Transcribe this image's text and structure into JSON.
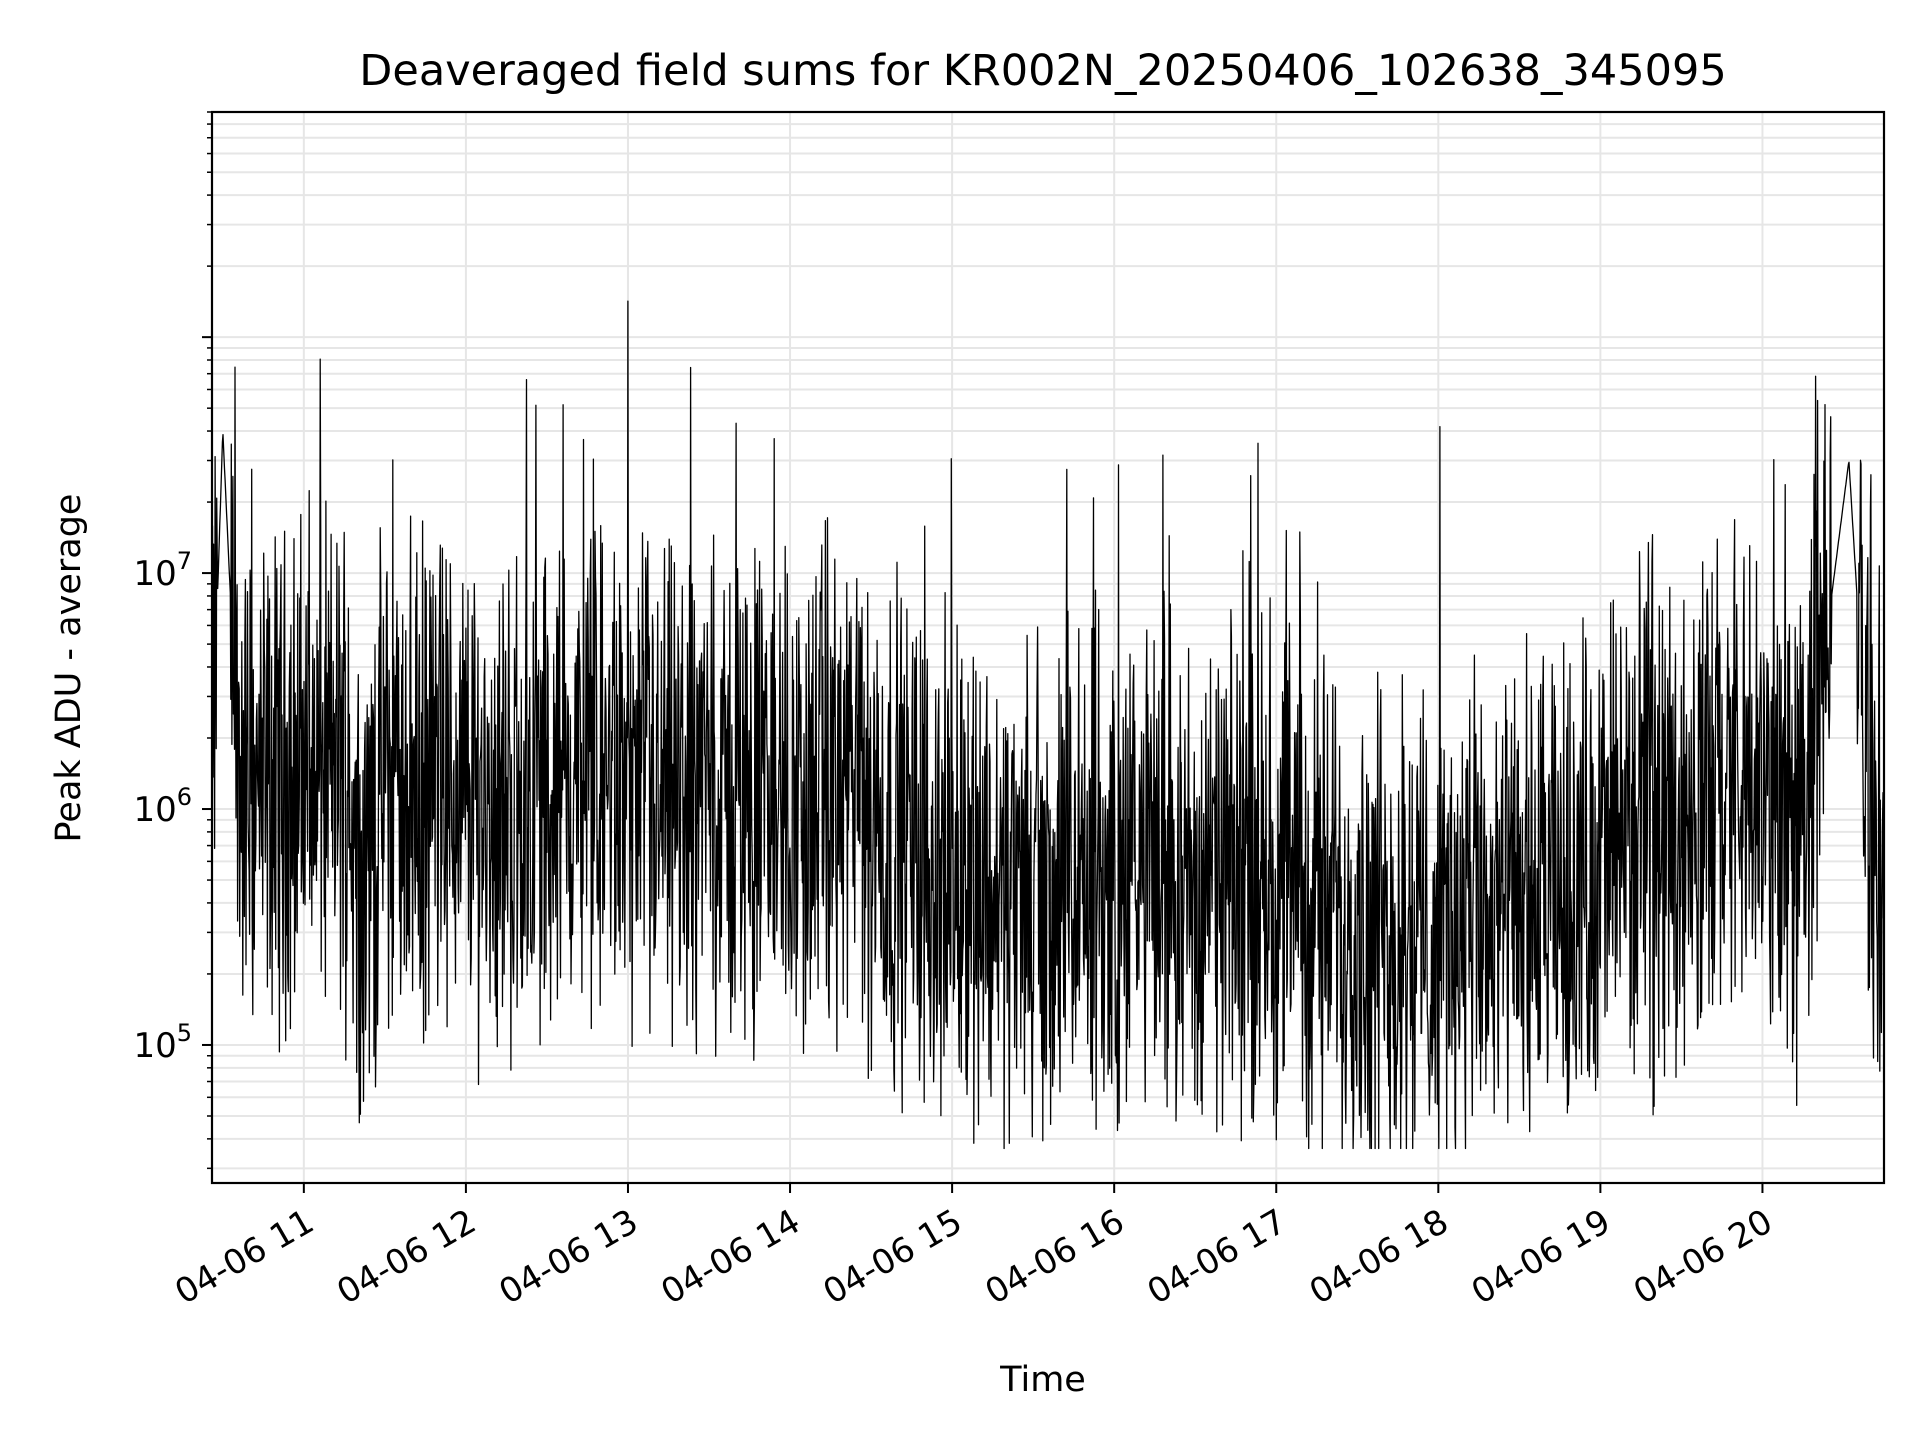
{
  "chart_data": {
    "type": "line",
    "title": "Deaveraged field sums for KR002N_20250406_102638_345095",
    "xlabel": "Time",
    "ylabel": "Peak ADU - average",
    "x_range": [
      "04-06 10:26",
      "04-06 20:45"
    ],
    "y_scale": "log",
    "ylim": [
      26000,
      900000000
    ],
    "xticks": [
      "04-06 11",
      "04-06 12",
      "04-06 13",
      "04-06 14",
      "04-06 15",
      "04-06 16",
      "04-06 17",
      "04-06 18",
      "04-06 19",
      "04-06 20"
    ],
    "yticks": [
      {
        "value": 100000,
        "base": "10",
        "exp": "5"
      },
      {
        "value": 1000000,
        "base": "10",
        "exp": "6"
      },
      {
        "value": 10000000,
        "base": "10",
        "exp": "7"
      }
    ],
    "grid": true,
    "legend": "none",
    "line_color": "#000000",
    "grid_color": "#e6e6e6",
    "series": [
      {
        "x": [
          "10:26",
          "10:30",
          "10:36",
          "10:45",
          "10:55",
          "11:05",
          "11:15",
          "11:22",
          "11:30",
          "11:45",
          "12:00",
          "12:09",
          "12:15",
          "12:30",
          "12:45",
          "12:53",
          "13:00",
          "13:15",
          "13:30",
          "13:34",
          "13:45",
          "14:00",
          "14:05",
          "14:15",
          "14:22",
          "14:30",
          "14:45",
          "15:00",
          "15:08",
          "15:15",
          "15:30",
          "15:44",
          "16:00",
          "16:15",
          "16:16",
          "16:30",
          "16:45",
          "17:00",
          "17:15",
          "17:30",
          "17:45",
          "18:00",
          "18:06",
          "18:15",
          "18:30",
          "18:45",
          "19:00",
          "19:15",
          "19:27",
          "19:45",
          "20:00",
          "20:15",
          "20:32",
          "20:40",
          "20:45"
        ],
        "y": [
          1500000,
          40000000,
          1300000,
          1100000,
          1500000,
          1400000,
          1600000,
          500000,
          1300000,
          1200000,
          1200000,
          1100000,
          1000000,
          1200000,
          1300000,
          1300000,
          1100000,
          1000000,
          1300000,
          1000000,
          1200000,
          1100000,
          1000000,
          1300000,
          1100000,
          900000,
          700000,
          500000,
          600000,
          450000,
          400000,
          400000,
          450000,
          550000,
          700000,
          420000,
          500000,
          520000,
          380000,
          320000,
          300000,
          290000,
          310000,
          320000,
          330000,
          400000,
          600000,
          800000,
          900000,
          1200000,
          1100000,
          900000,
          30000000,
          900000,
          850000
        ]
      }
    ]
  }
}
